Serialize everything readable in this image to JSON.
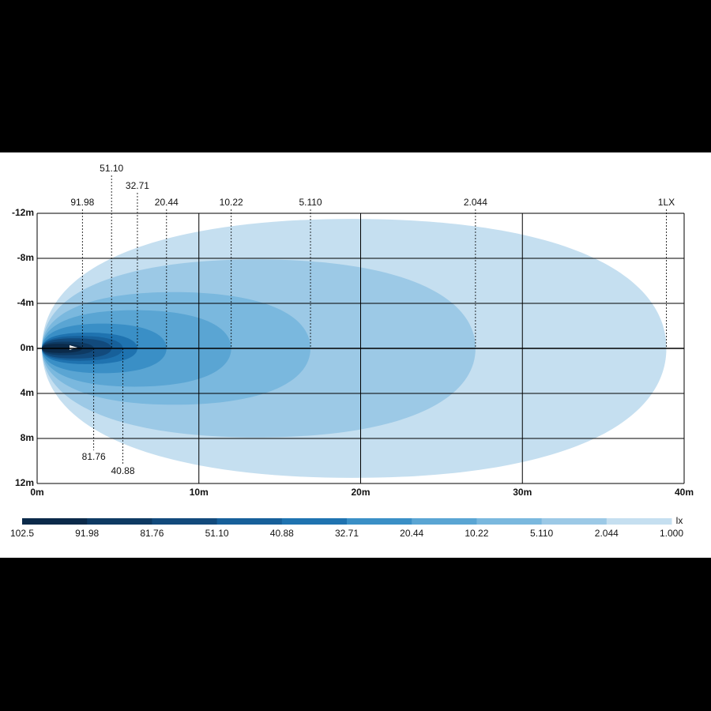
{
  "chart_data": {
    "type": "isolux",
    "xlim": [
      0,
      40
    ],
    "ylim": [
      -12,
      12
    ],
    "xticks": [
      {
        "value": 0,
        "label": "0m"
      },
      {
        "value": 10,
        "label": "10m"
      },
      {
        "value": 20,
        "label": "20m"
      },
      {
        "value": 30,
        "label": "30m"
      },
      {
        "value": 40,
        "label": "40m"
      }
    ],
    "yticks": [
      {
        "value": -12,
        "label": "-12m"
      },
      {
        "value": -8,
        "label": "-8m"
      },
      {
        "value": -4,
        "label": "-4m"
      },
      {
        "value": 0,
        "label": "0m"
      },
      {
        "value": 4,
        "label": "4m"
      },
      {
        "value": 8,
        "label": "8m"
      },
      {
        "value": 12,
        "label": "12m"
      }
    ],
    "grid": true,
    "contours": [
      {
        "label": "1LX",
        "reach": 38.9,
        "half_width": 11.5,
        "color": "#c5dff0",
        "label_position": "top"
      },
      {
        "label": "2.044",
        "reach": 27.1,
        "half_width": 7.9,
        "color": "#9cc9e6",
        "label_position": "top"
      },
      {
        "label": "5.110",
        "reach": 16.9,
        "half_width": 5,
        "color": "#7ab8de",
        "label_position": "top"
      },
      {
        "label": "10.22",
        "reach": 12,
        "half_width": 3.4,
        "color": "#5aa5d3",
        "label_position": "top"
      },
      {
        "label": "20.44",
        "reach": 8,
        "half_width": 2.2,
        "color": "#3a8fc6",
        "label_position": "top"
      },
      {
        "label": "32.71",
        "reach": 6.2,
        "half_width": 1.4,
        "color": "#1f73b0",
        "label_position": "top"
      },
      {
        "label": "40.88",
        "reach": 5.3,
        "half_width": 1.1,
        "color": "#17609a",
        "label_position": "bottom"
      },
      {
        "label": "51.10",
        "reach": 4.6,
        "half_width": 0.9,
        "color": "#124a7c",
        "label_position": "top"
      },
      {
        "label": "81.76",
        "reach": 3.5,
        "half_width": 0.6,
        "color": "#0e3a63",
        "label_position": "bottom"
      },
      {
        "label": "91.98",
        "reach": 2.8,
        "half_width": 0.4,
        "color": "#0b2a4a",
        "label_position": "top"
      }
    ],
    "legend": {
      "unit": "lx",
      "labels": [
        "102.5",
        "91.98",
        "81.76",
        "51.10",
        "40.88",
        "32.71",
        "20.44",
        "10.22",
        "5.110",
        "2.044",
        "1.000"
      ],
      "colors": [
        "#0b2a4a",
        "#0e3a63",
        "#124a7c",
        "#17609a",
        "#1f73b0",
        "#3a8fc6",
        "#5aa5d3",
        "#7ab8de",
        "#9cc9e6",
        "#c5dff0"
      ]
    }
  }
}
